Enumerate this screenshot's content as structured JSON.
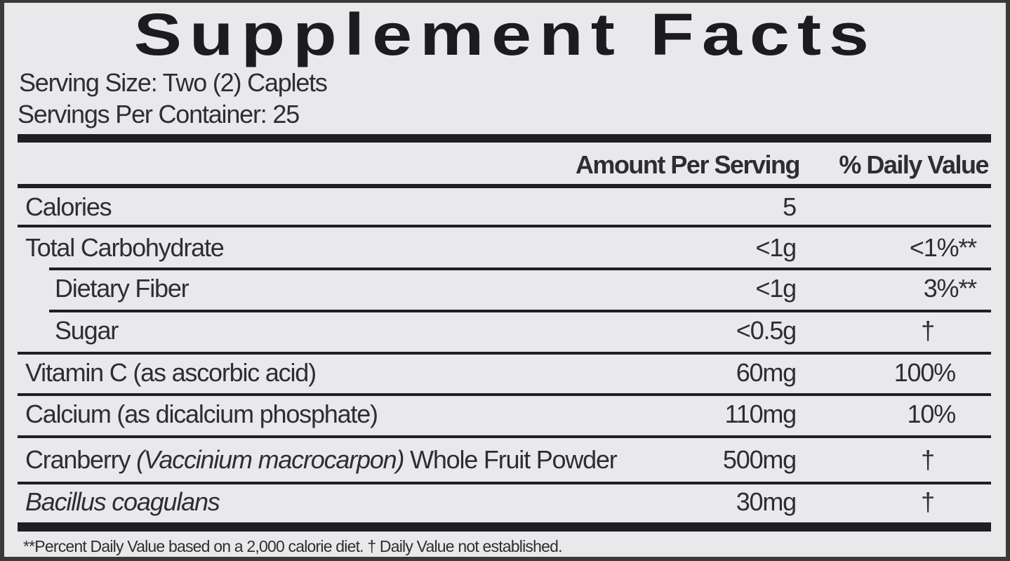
{
  "title": "Supplement Facts",
  "serving_size": "Serving Size: Two (2) Caplets",
  "servings_per_container": "Servings Per Container: 25",
  "headers": {
    "amount": "Amount Per Serving",
    "dv": "% Daily Value"
  },
  "rows": [
    {
      "name": "Calories",
      "amount": "5",
      "dv": ""
    },
    {
      "name": "Total Carbohydrate",
      "amount": "<1g",
      "dv": "<1%**"
    },
    {
      "name": "Dietary Fiber",
      "amount": "<1g",
      "dv": "3%**"
    },
    {
      "name": "Sugar",
      "amount": "<0.5g",
      "dv": "†"
    },
    {
      "name": "Vitamin C (as ascorbic acid)",
      "amount": "60mg",
      "dv": "100%"
    },
    {
      "name": "Calcium (as dicalcium phosphate)",
      "amount": "110mg",
      "dv": "10%"
    },
    {
      "name": "Cranberry ",
      "name_italic": "(Vaccinium macrocarpon)",
      "name_suffix": " Whole Fruit Powder",
      "amount": "500mg",
      "dv": "†"
    },
    {
      "name_italic": "Bacillus coagulans",
      "amount": "30mg",
      "dv": "†"
    }
  ],
  "footnote": "**Percent Daily Value based on a 2,000 calorie diet. † Daily Value not established."
}
